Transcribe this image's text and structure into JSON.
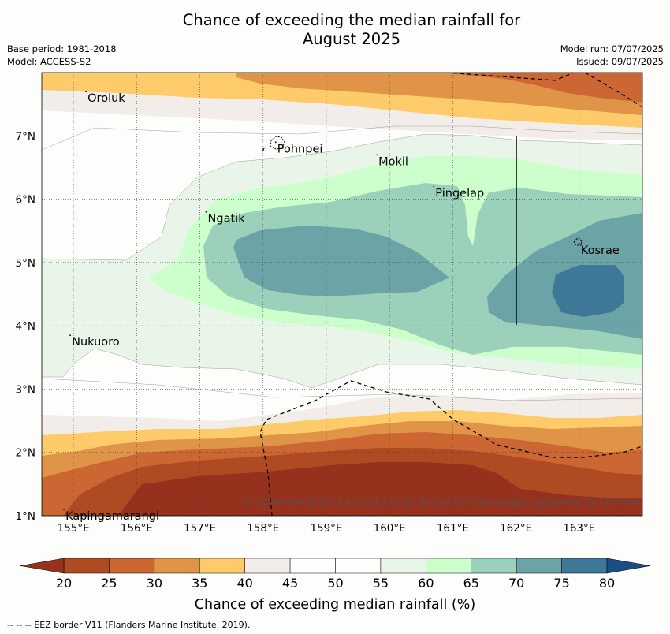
{
  "title": {
    "line1": "Chance of exceeding the median rainfall for",
    "line2": "August 2025"
  },
  "meta": {
    "base_period": "Base period: 1981-2018",
    "model": "Model: ACCESS-S2",
    "model_run": "Model run: 07/07/2025",
    "issued": "Issued: 09/07/2025"
  },
  "map": {
    "lon_range": [
      154.5,
      164.0
    ],
    "lat_range": [
      1.0,
      8.0
    ],
    "lon_ticks": [
      "155°E",
      "156°E",
      "157°E",
      "158°E",
      "159°E",
      "160°E",
      "161°E",
      "162°E",
      "163°E"
    ],
    "lat_ticks": [
      "1°N",
      "2°N",
      "3°N",
      "4°N",
      "5°N",
      "6°N",
      "7°N"
    ],
    "places": [
      {
        "name": "Oroluk",
        "lon": 155.2,
        "lat": 7.7
      },
      {
        "name": "Pohnpei",
        "lon": 158.2,
        "lat": 6.9
      },
      {
        "name": "Mokil",
        "lon": 159.8,
        "lat": 6.7
      },
      {
        "name": "Pingelap",
        "lon": 160.7,
        "lat": 6.2
      },
      {
        "name": "Ngatik",
        "lon": 157.1,
        "lat": 5.8
      },
      {
        "name": "Kosrae",
        "lon": 163.0,
        "lat": 5.3
      },
      {
        "name": "Nukuoro",
        "lon": 154.95,
        "lat": 3.85
      },
      {
        "name": "Kapingamarangi",
        "lon": 154.85,
        "lat": 1.1
      }
    ],
    "grid": true,
    "eez_border": "dashed",
    "copyright": "© Commonwealth of Australia 2025, Bureau of Meteorology, supported by COSPPac"
  },
  "colorbar": {
    "ticks": [
      "20",
      "25",
      "30",
      "35",
      "40",
      "45",
      "50",
      "55",
      "60",
      "65",
      "70",
      "75",
      "80"
    ],
    "colors": [
      "#b04a22",
      "#cc6633",
      "#e09448",
      "#fecb6a",
      "#f2ede8",
      "#fdfefb",
      "#fdfefb",
      "#eaf5ea",
      "#ccffcc",
      "#9bd1ba",
      "#6ba3a6",
      "#3e7896"
    ],
    "under_color": "#96311e",
    "over_color": "#1b4e85",
    "label": "Chance of exceeding median rainfall (%)"
  },
  "footnote": "--  --  -- EEZ border V11 (Flanders Marine Institute, 2019)."
}
